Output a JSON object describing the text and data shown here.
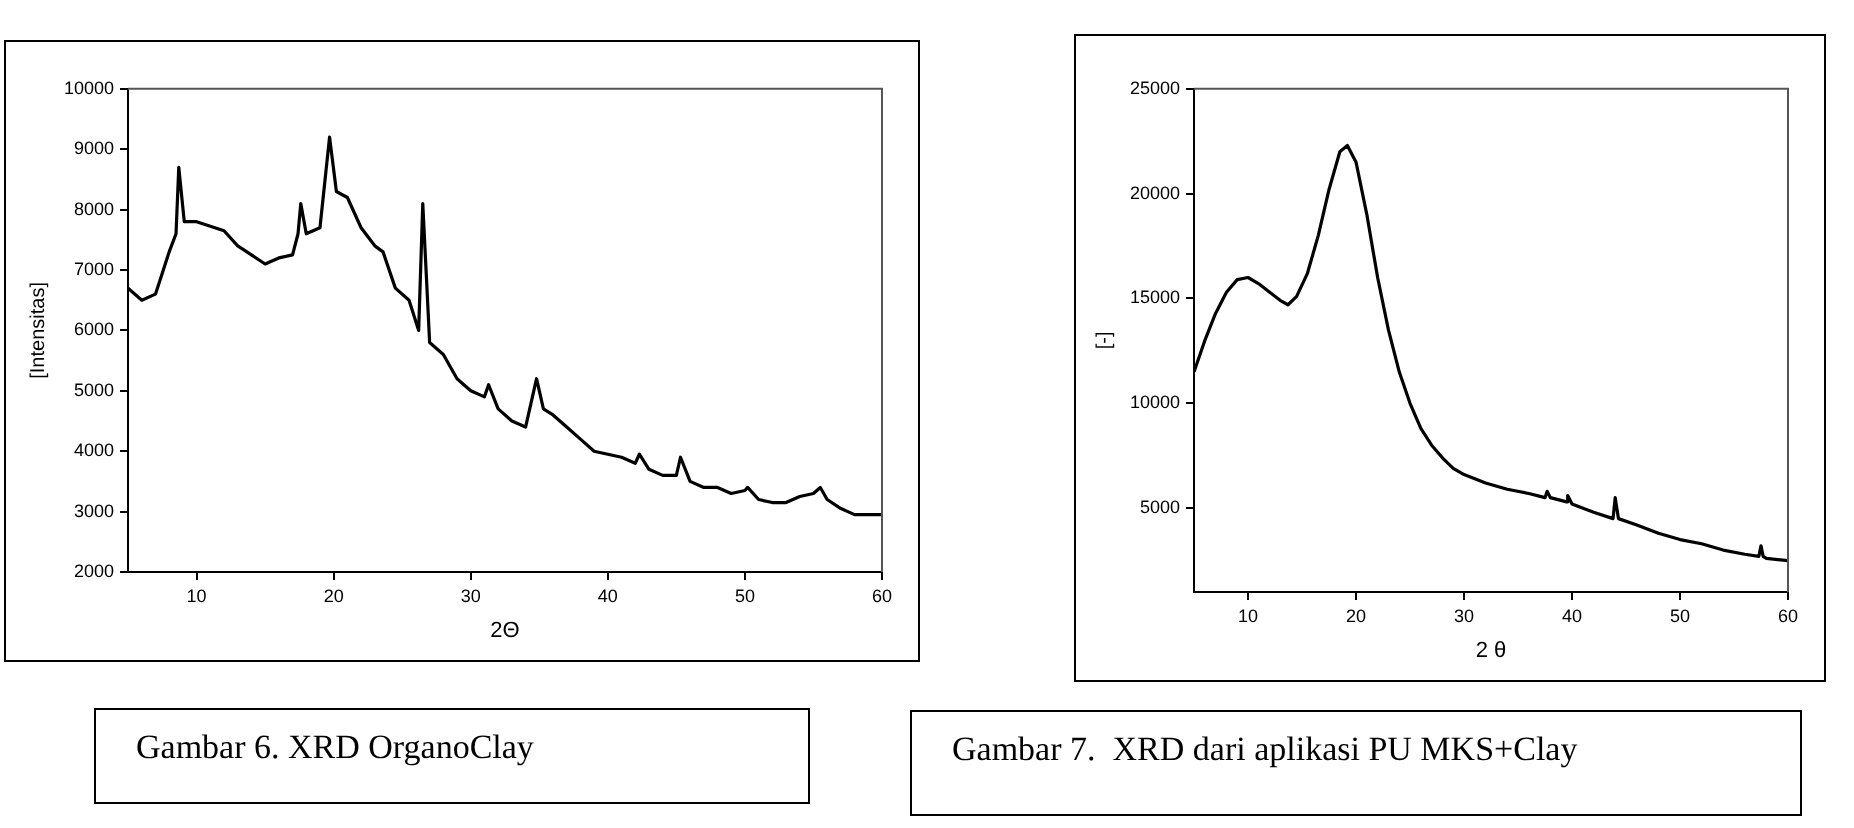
{
  "chart_data": [
    {
      "type": "line",
      "xlabel": "2Θ",
      "ylabel": "[Intensitas]",
      "annotations": [
        "Gambar 6. XRD OrganoClay"
      ],
      "color": "#000000",
      "xlim": [
        5,
        60
      ],
      "ylim": [
        2000,
        10000
      ],
      "xticks": [
        10,
        20,
        30,
        40,
        50,
        60
      ],
      "yticks": [
        2000,
        3000,
        4000,
        5000,
        6000,
        7000,
        8000,
        9000,
        10000
      ],
      "x": [
        5,
        6,
        7,
        8,
        8.5,
        8.7,
        9.1,
        10,
        12,
        13,
        14,
        15,
        16,
        17,
        17.4,
        17.6,
        18,
        19,
        19.7,
        20.2,
        21,
        22,
        23,
        23.6,
        24.5,
        25.5,
        26.2,
        26.5,
        27,
        28,
        29,
        30,
        31,
        31.3,
        32,
        33,
        34,
        34.8,
        35.3,
        36,
        37,
        38,
        39,
        40,
        41,
        42,
        42.3,
        43,
        44,
        45,
        45.3,
        46,
        47,
        48,
        49,
        50,
        50.2,
        51,
        52,
        53,
        54,
        55,
        55.5,
        56,
        57,
        58,
        59,
        60
      ],
      "values": [
        6700,
        6500,
        6600,
        7300,
        7600,
        8700,
        7800,
        7800,
        7650,
        7400,
        7250,
        7100,
        7200,
        7250,
        7600,
        8100,
        7600,
        7700,
        9200,
        8300,
        8200,
        7700,
        7400,
        7300,
        6700,
        6500,
        6000,
        8100,
        5800,
        5600,
        5200,
        5000,
        4900,
        5100,
        4700,
        4500,
        4400,
        5200,
        4700,
        4600,
        4400,
        4200,
        4000,
        3950,
        3900,
        3800,
        3950,
        3700,
        3600,
        3600,
        3900,
        3500,
        3400,
        3400,
        3300,
        3350,
        3400,
        3200,
        3150,
        3150,
        3250,
        3300,
        3400,
        3200,
        3050,
        2950,
        2950,
        2950
      ]
    },
    {
      "type": "line",
      "xlabel": "2 θ",
      "ylabel": "[-]",
      "annotations": [
        "Gambar 7.  XRD dari aplikasi PU MKS+Clay"
      ],
      "color": "#000000",
      "xlim": [
        5,
        60
      ],
      "ylim": [
        1000,
        25000
      ],
      "xticks": [
        10,
        20,
        30,
        40,
        50,
        60
      ],
      "yticks": [
        5000,
        10000,
        15000,
        20000,
        25000
      ],
      "x": [
        5,
        6,
        7,
        8,
        9,
        10,
        11,
        12,
        13,
        13.7,
        14.5,
        15.5,
        16.5,
        17.5,
        18.5,
        19.2,
        20,
        21,
        22,
        23,
        24,
        25,
        26,
        27,
        28,
        29,
        30,
        32,
        34,
        36,
        37.5,
        37.7,
        38,
        39.5,
        39.6,
        40,
        42,
        43.8,
        44,
        44.3,
        46,
        48,
        50,
        52,
        54,
        56,
        57.3,
        57.5,
        57.7,
        58,
        60
      ],
      "values": [
        11500,
        13000,
        14300,
        15300,
        15900,
        16000,
        15700,
        15300,
        14900,
        14700,
        15100,
        16200,
        18000,
        20200,
        22000,
        22300,
        21500,
        19000,
        16000,
        13500,
        11500,
        10000,
        8800,
        8000,
        7400,
        6900,
        6600,
        6200,
        5900,
        5700,
        5500,
        5800,
        5500,
        5300,
        5600,
        5200,
        4800,
        4500,
        5500,
        4500,
        4200,
        3800,
        3500,
        3300,
        3000,
        2800,
        2700,
        3200,
        2700,
        2600,
        2500
      ]
    }
  ]
}
